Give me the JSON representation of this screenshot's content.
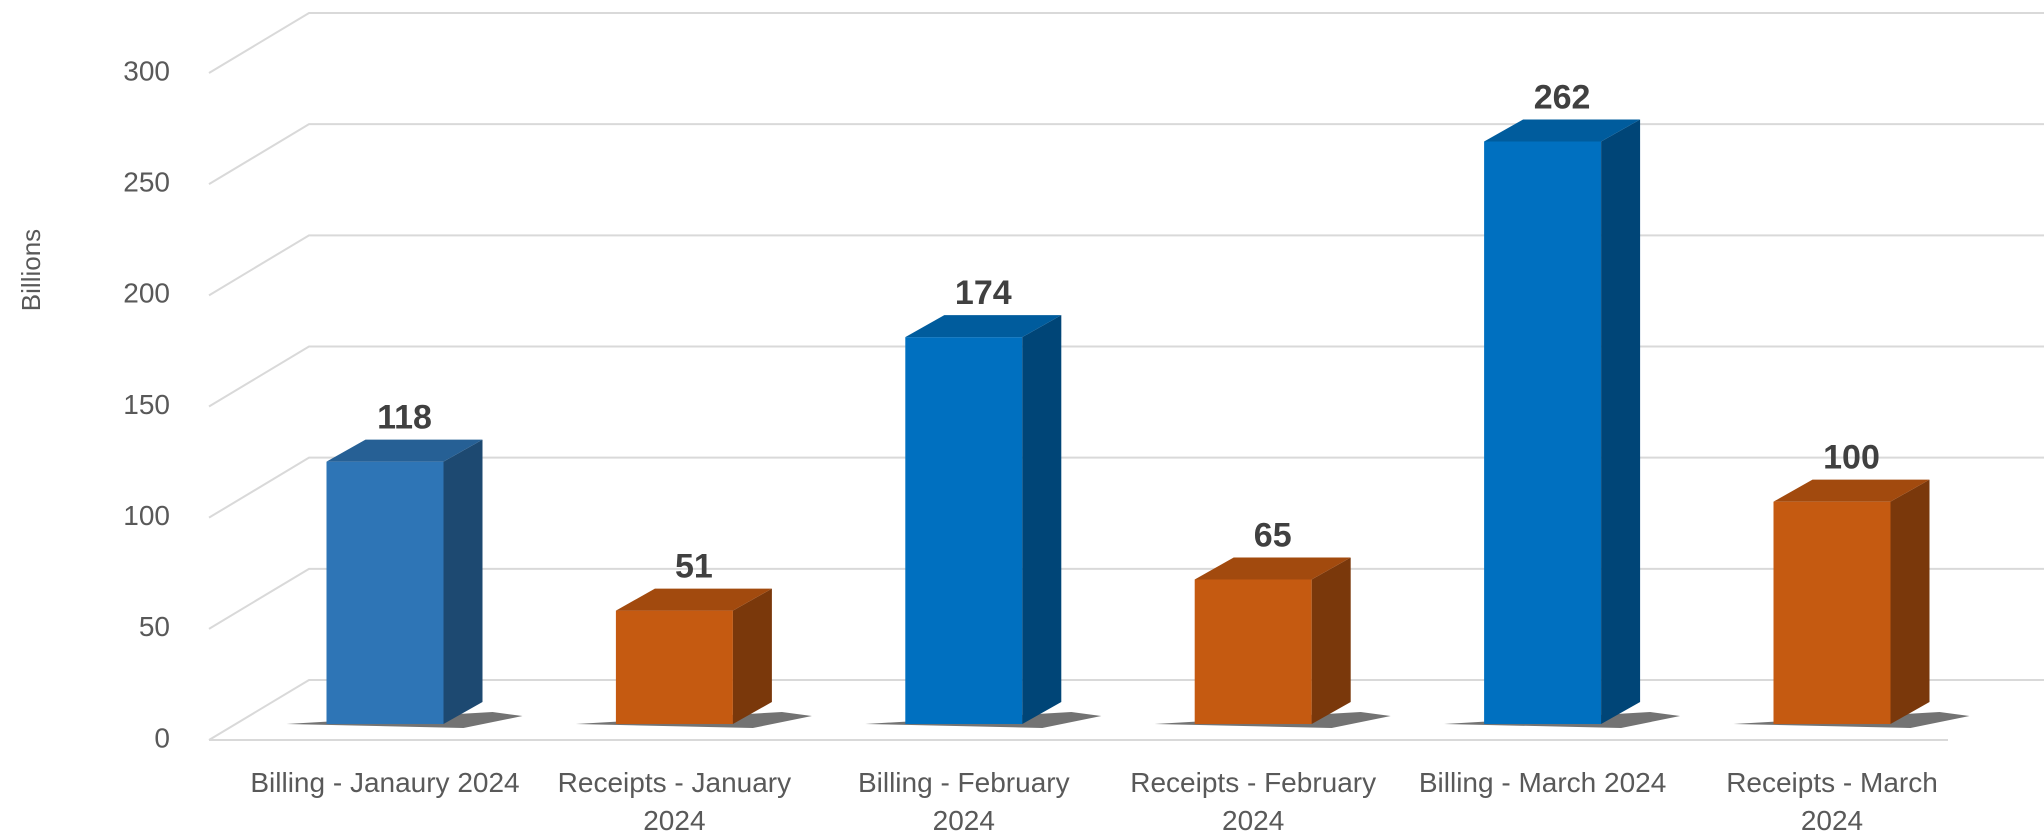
{
  "chart_data": {
    "type": "bar3d",
    "y_axis_label": "Billions",
    "categories": [
      "Billing - Janaury 2024",
      "Receipts - January 2024",
      "Billing - February 2024",
      "Receipts - February 2024",
      "Billing - March 2024",
      "Receipts - March 2024"
    ],
    "values": [
      118,
      51,
      174,
      65,
      262,
      100
    ],
    "colors": [
      "#2e75b6",
      "#c55a11",
      "#0070c0",
      "#c55a11",
      "#0070c0",
      "#c55a11"
    ],
    "ylim": [
      0,
      300
    ],
    "yticks": [
      0,
      50,
      100,
      150,
      200,
      250,
      300
    ],
    "grid": true
  }
}
